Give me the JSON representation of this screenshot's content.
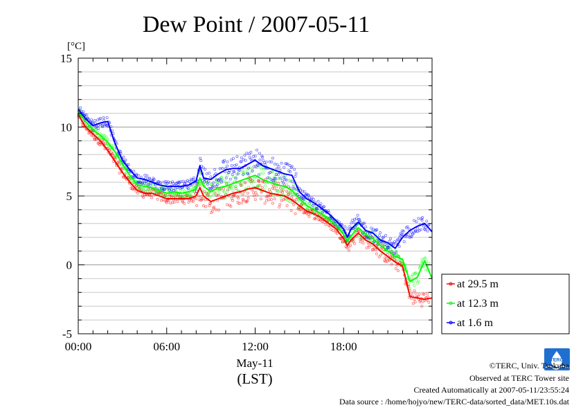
{
  "chart_data": {
    "type": "line",
    "title": "Dew Point / 2007-05-11",
    "ylabel": "[°C]",
    "xlabel": "May-11",
    "xlabel2": "(LST)",
    "xlim": [
      0,
      24
    ],
    "ylim": [
      -5,
      15
    ],
    "x_ticks": [
      {
        "value": 0,
        "label": "00:00"
      },
      {
        "value": 6,
        "label": "06:00"
      },
      {
        "value": 12,
        "label": "12:00"
      },
      {
        "value": 18,
        "label": "18:00"
      }
    ],
    "y_ticks": [
      {
        "value": -5,
        "label": "-5"
      },
      {
        "value": 0,
        "label": "0"
      },
      {
        "value": 5,
        "label": "5"
      },
      {
        "value": 10,
        "label": "10"
      },
      {
        "value": 15,
        "label": "15"
      }
    ],
    "grid": true,
    "legend_position": "right",
    "series": [
      {
        "name": "at 29.5 m",
        "color": "#ff0000",
        "x": [
          0,
          0.5,
          1,
          1.5,
          2,
          2.5,
          3,
          3.5,
          4,
          4.5,
          5,
          5.5,
          6,
          6.5,
          7,
          7.5,
          8,
          8.25,
          8.5,
          9,
          9.5,
          10,
          10.5,
          11,
          11.5,
          12,
          12.5,
          13,
          13.5,
          14,
          14.5,
          15,
          15.5,
          16,
          16.5,
          17,
          17.5,
          18,
          18.25,
          18.5,
          19,
          19.5,
          20,
          20.5,
          21,
          21.5,
          22,
          22.5,
          23,
          23.5,
          24
        ],
        "y": [
          10.9,
          10.0,
          9.5,
          9.0,
          8.3,
          7.5,
          6.7,
          6.0,
          5.4,
          5.2,
          5.2,
          5.0,
          4.8,
          4.8,
          4.8,
          4.8,
          5.0,
          5.6,
          5.0,
          4.6,
          4.8,
          5.0,
          5.2,
          5.3,
          5.5,
          5.6,
          5.4,
          5.2,
          5.1,
          5.0,
          4.7,
          4.3,
          3.9,
          3.7,
          3.4,
          3.0,
          2.6,
          1.9,
          1.4,
          1.8,
          2.3,
          1.8,
          1.5,
          1.0,
          0.6,
          0.2,
          -0.1,
          -2.3,
          -2.4,
          -2.5,
          -2.4
        ]
      },
      {
        "name": "at 12.3 m",
        "color": "#00ff00",
        "x": [
          0,
          0.5,
          1,
          1.5,
          2,
          2.5,
          3,
          3.5,
          4,
          4.5,
          5,
          5.5,
          6,
          6.5,
          7,
          7.5,
          8,
          8.25,
          8.5,
          9,
          9.5,
          10,
          10.5,
          11,
          11.5,
          12,
          12.5,
          13,
          13.5,
          14,
          14.5,
          15,
          15.5,
          16,
          16.5,
          17,
          17.5,
          18,
          18.25,
          18.5,
          19,
          19.5,
          20,
          20.5,
          21,
          21.5,
          22,
          22.5,
          23,
          23.5,
          24
        ],
        "y": [
          11.1,
          10.4,
          9.8,
          9.4,
          8.9,
          8.2,
          7.3,
          6.5,
          5.8,
          5.7,
          5.6,
          5.4,
          5.2,
          5.3,
          5.2,
          5.3,
          5.5,
          6.3,
          5.7,
          5.3,
          5.6,
          5.7,
          5.9,
          6.1,
          6.3,
          6.5,
          6.2,
          6.0,
          5.8,
          5.7,
          5.4,
          4.8,
          4.3,
          4.0,
          3.7,
          3.3,
          2.9,
          2.2,
          1.7,
          2.1,
          2.7,
          2.2,
          1.9,
          1.4,
          1.0,
          0.6,
          0.4,
          -1.2,
          -0.9,
          0.3,
          -1.0
        ]
      },
      {
        "name": "at 1.6 m",
        "color": "#0000ff",
        "x": [
          0,
          0.5,
          1,
          1.5,
          2,
          2.5,
          3,
          3.5,
          4,
          4.5,
          5,
          5.5,
          6,
          6.5,
          7,
          7.5,
          8,
          8.25,
          8.5,
          9,
          9.5,
          10,
          10.5,
          11,
          11.5,
          12,
          12.5,
          13,
          13.5,
          14,
          14.5,
          15,
          15.5,
          16,
          16.5,
          17,
          17.5,
          18,
          18.25,
          18.5,
          19,
          19.5,
          20,
          20.5,
          21,
          21.5,
          22,
          22.5,
          23,
          23.5,
          24
        ],
        "y": [
          11.3,
          10.6,
          10.1,
          10.3,
          10.4,
          8.8,
          7.6,
          6.9,
          6.3,
          6.2,
          6.0,
          5.8,
          5.7,
          5.7,
          5.7,
          5.8,
          6.1,
          7.2,
          6.3,
          6.2,
          6.6,
          6.9,
          7.0,
          7.0,
          7.3,
          7.6,
          7.2,
          7.0,
          6.8,
          6.6,
          6.5,
          5.3,
          4.8,
          4.5,
          4.1,
          3.7,
          3.2,
          2.6,
          2.0,
          2.6,
          3.1,
          2.5,
          2.3,
          1.8,
          1.6,
          1.2,
          2.0,
          2.5,
          2.8,
          3.0,
          2.4
        ]
      }
    ]
  },
  "credits": {
    "copyright": "©TERC, Univ. Tsukuba",
    "site": "Observed at TERC Tower site",
    "created": "Created Automatically at 2007-05-11/23:55:24",
    "source": "Data source : /home/hojyo/new/TERC-data/sorted_data/MET.10s.dat",
    "logo_text": "TERC"
  }
}
